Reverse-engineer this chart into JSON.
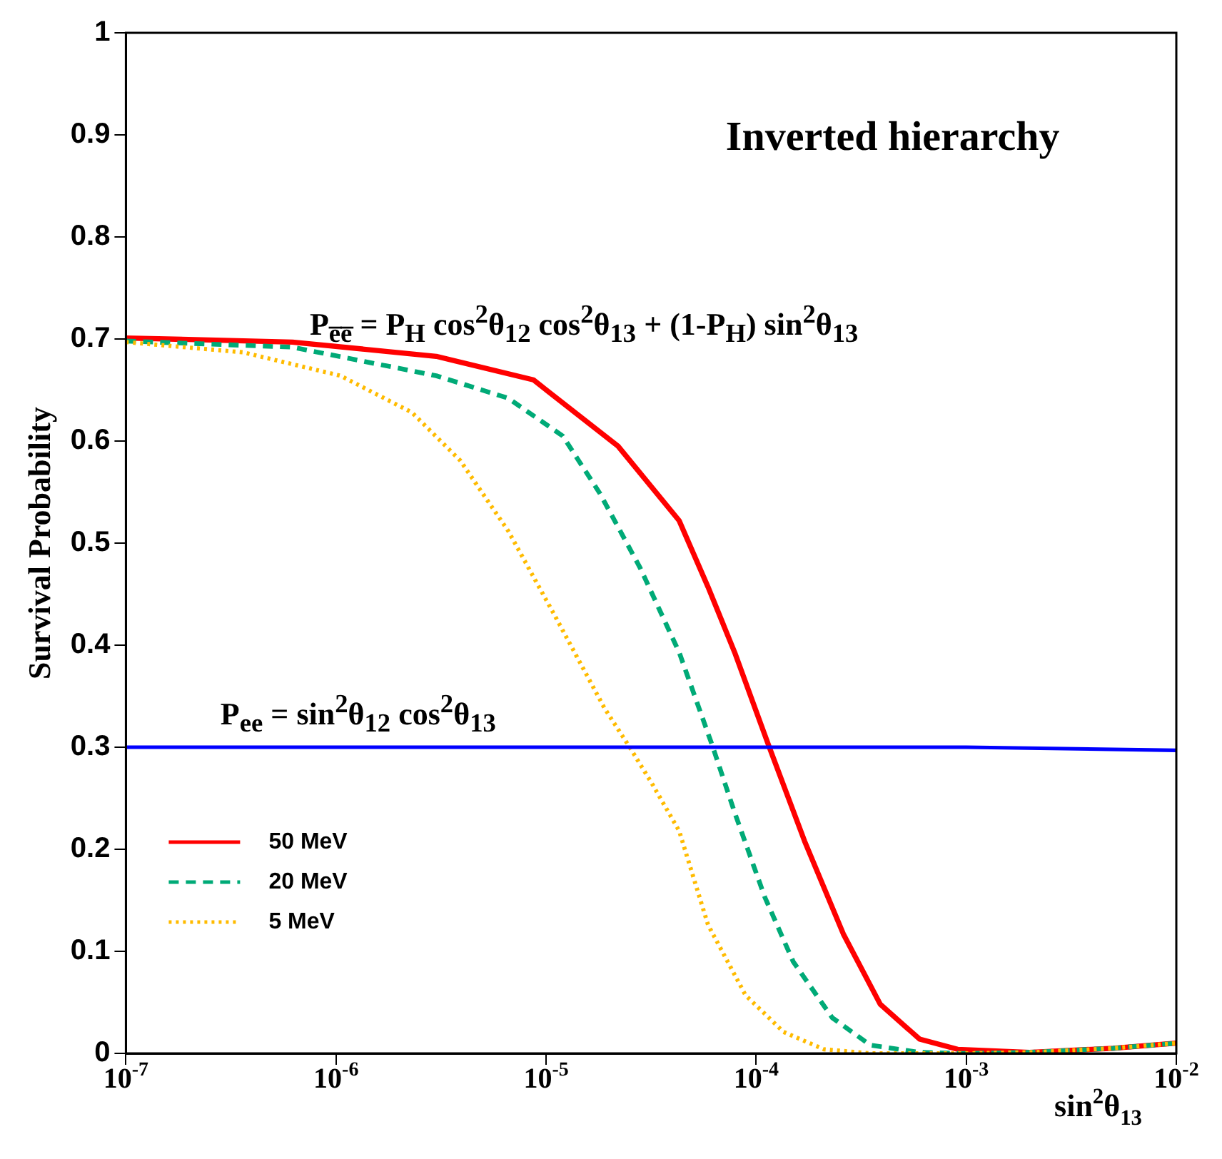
{
  "chart_data": {
    "type": "line",
    "title": "Inverted hierarchy",
    "xlabel": "sin$^{2}$θ$_{13}$",
    "ylabel": "Survival Probability",
    "log": "x",
    "xlim": [
      1e-07,
      0.01
    ],
    "xticks": [
      {
        "value": 1e-07,
        "label": "10$^{-7}$"
      },
      {
        "value": 1e-06,
        "label": "10$^{-6}$"
      },
      {
        "value": 1e-05,
        "label": "10$^{-5}$"
      },
      {
        "value": 0.0001,
        "label": "10$^{-4}$"
      },
      {
        "value": 0.001,
        "label": "10$^{-3}$"
      },
      {
        "value": 0.01,
        "label": "10$^{-2}$"
      }
    ],
    "ylim": [
      0,
      1
    ],
    "yticks": [
      0,
      0.1,
      0.2,
      0.3,
      0.4,
      0.5,
      0.6,
      0.7,
      0.8,
      0.9,
      1
    ],
    "grid": false,
    "legend": "bottom left",
    "annotations": [
      "P$_{e̅e̅}$ = P$_{H}$ cos$^{2}$θ$_{12}$ cos$^{2}$θ$_{13}$ + (1-P$_{H}$) sin$^{2}$θ$_{13}$",
      "P$_{ee}$ = sin$^{2}$θ$_{12}$ cos$^{2}$θ$_{13}$"
    ],
    "series": [
      {
        "name": "50 MeV",
        "color": "#ff0000",
        "line_style": "solid",
        "x": [
          1e-07,
          6.2e-07,
          3e-06,
          8.7e-06,
          2.2e-05,
          4.3e-05,
          5.9e-05,
          7.9e-05,
          0.000115,
          0.00017,
          0.00026,
          0.00039,
          0.0006,
          0.00091,
          0.002,
          0.005,
          0.01
        ],
        "values": [
          0.701,
          0.697,
          0.683,
          0.66,
          0.595,
          0.522,
          0.457,
          0.393,
          0.301,
          0.208,
          0.117,
          0.048,
          0.014,
          0.004,
          0.001,
          0.005,
          0.01
        ]
      },
      {
        "name": "20 MeV",
        "color": "#00aa77",
        "line_style": "dashed",
        "x": [
          1e-07,
          6.2e-07,
          3e-06,
          6.6e-06,
          1.2e-05,
          1.8e-05,
          2.8e-05,
          4.3e-05,
          6.2e-05,
          7.9e-05,
          0.00011,
          0.00015,
          0.00023,
          0.00035,
          0.0006,
          0.001,
          0.002,
          0.005,
          0.01
        ],
        "values": [
          0.698,
          0.692,
          0.664,
          0.642,
          0.605,
          0.549,
          0.476,
          0.393,
          0.301,
          0.236,
          0.153,
          0.09,
          0.035,
          0.008,
          0.001,
          0,
          0.001,
          0.005,
          0.01
        ]
      },
      {
        "name": "5 MeV",
        "color": "#ffbb00",
        "line_style": "dotted",
        "x": [
          1e-07,
          3.6e-07,
          1.05e-06,
          2.3e-06,
          3.9e-06,
          6.6e-06,
          1.1e-05,
          1.9e-05,
          2.5e-05,
          3.2e-05,
          4.3e-05,
          5.9e-05,
          8.9e-05,
          0.000135,
          0.00021,
          0.00035,
          0.001,
          0.002,
          0.005,
          0.01
        ],
        "values": [
          0.697,
          0.687,
          0.664,
          0.628,
          0.581,
          0.512,
          0.429,
          0.338,
          0.3,
          0.264,
          0.218,
          0.126,
          0.057,
          0.021,
          0.004,
          0,
          0,
          0.001,
          0.005,
          0.01
        ]
      },
      {
        "color": "#0000ff",
        "line_style": "solid",
        "x": [
          1e-07,
          0.0001,
          0.001,
          0.01
        ],
        "values": [
          0.3,
          0.3,
          0.3,
          0.297
        ]
      }
    ]
  }
}
